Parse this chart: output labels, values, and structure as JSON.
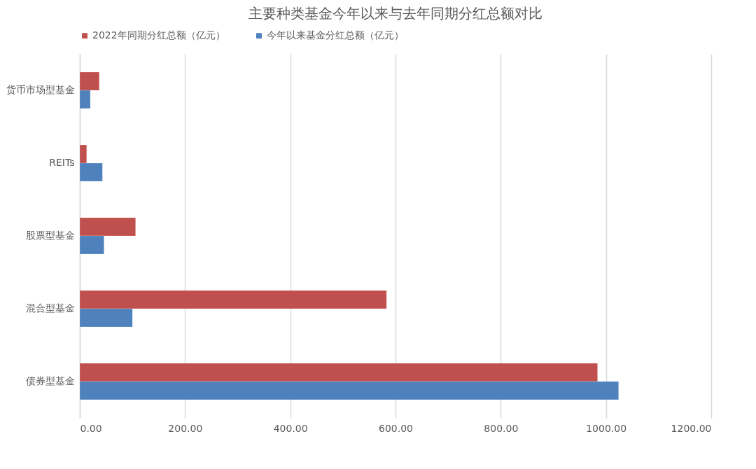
{
  "chart_data": {
    "type": "bar",
    "orientation": "horizontal",
    "title": "主要种类基金今年以来与去年同期分红总额对比",
    "categories": [
      "货币市场型基金",
      "REITs",
      "股票型基金",
      "混合型基金",
      "债券型基金"
    ],
    "series": [
      {
        "name": "2022年同期分红总额（亿元）",
        "color": "#c0504d",
        "values": [
          37,
          13,
          106,
          583,
          984
        ]
      },
      {
        "name": "今年以来基金分红总额（亿元）",
        "color": "#4f81bd",
        "values": [
          20,
          43,
          46,
          100,
          1024
        ]
      }
    ],
    "xlim": [
      0,
      1200
    ],
    "xticks": [
      {
        "value": 0,
        "label": "0.00"
      },
      {
        "value": 200,
        "label": "200.00"
      },
      {
        "value": 400,
        "label": "400.00"
      },
      {
        "value": 600,
        "label": "600.00"
      },
      {
        "value": 800,
        "label": "800.00"
      },
      {
        "value": 1000,
        "label": "1000.00"
      },
      {
        "value": 1200,
        "label": "1200.00"
      }
    ],
    "grid": "x",
    "legend": "top"
  }
}
